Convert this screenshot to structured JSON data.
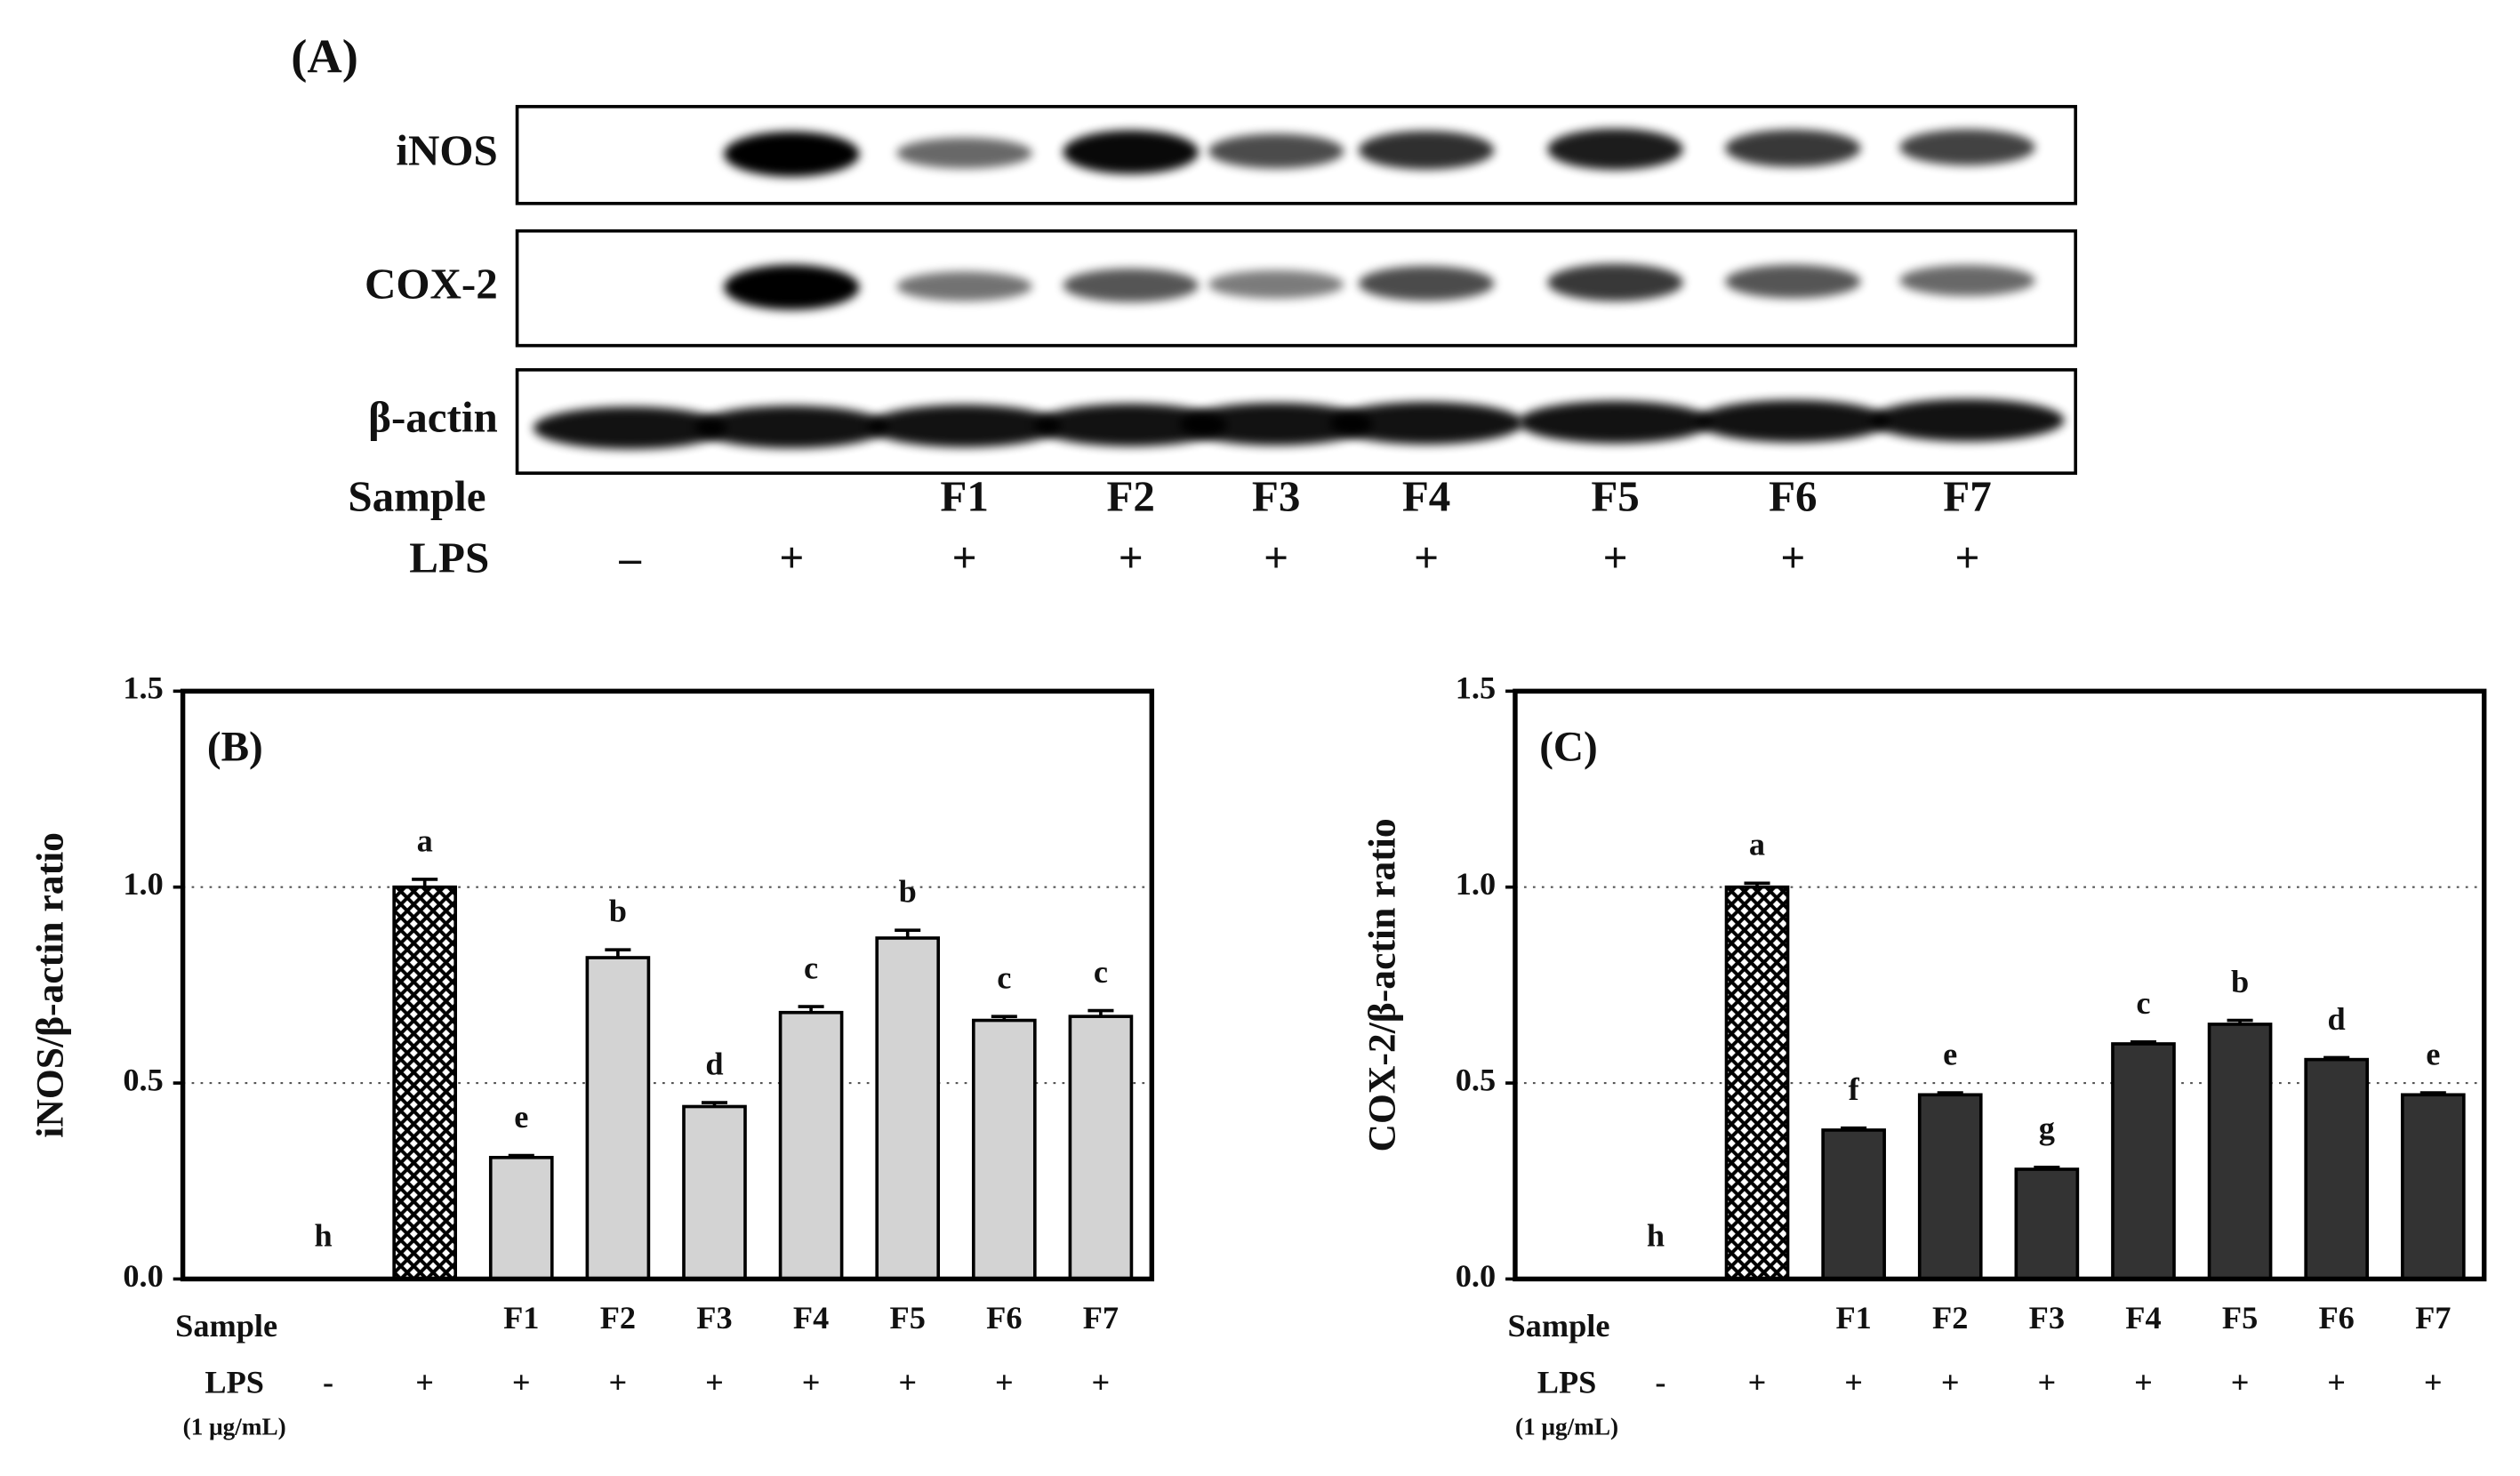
{
  "panel_a": {
    "label": "(A)",
    "rows": [
      "iNOS",
      "COX-2",
      "β-actin"
    ],
    "sample_label": "Sample",
    "samples": [
      null,
      null,
      "F1",
      "F2",
      "F3",
      "F4",
      "F5",
      "F6",
      "F7"
    ],
    "lps_label": "LPS",
    "lps": [
      "–",
      "+",
      "+",
      "+",
      "+",
      "+",
      "+",
      "+",
      "+"
    ]
  },
  "chart_data": [
    {
      "type": "bar",
      "panel": "(B)",
      "ylabel": "iNOS/β-actin ratio",
      "categories": [
        null,
        null,
        "F1",
        "F2",
        "F3",
        "F4",
        "F5",
        "F6",
        "F7"
      ],
      "values": [
        0,
        1.0,
        0.31,
        0.82,
        0.44,
        0.68,
        0.87,
        0.66,
        0.67
      ],
      "errors": [
        0,
        0.02,
        0.005,
        0.02,
        0.01,
        0.015,
        0.02,
        0.01,
        0.015
      ],
      "letters": [
        "h",
        "a",
        "e",
        "b",
        "d",
        "c",
        "b",
        "c",
        "c"
      ],
      "colors": [
        "#d3d3d3",
        "crosshatch",
        "#d3d3d3",
        "#d3d3d3",
        "#d3d3d3",
        "#d3d3d3",
        "#d3d3d3",
        "#d3d3d3",
        "#d3d3d3"
      ],
      "ylim": [
        0,
        1.5
      ],
      "yticks": [
        {
          "value": 0,
          "label": "0.0"
        },
        {
          "value": 0.5,
          "label": "0.5"
        },
        {
          "value": 1,
          "label": "1.0"
        },
        {
          "value": 1.5,
          "label": "1.5"
        }
      ],
      "grid": true,
      "sample_label": "Sample",
      "lps_label": "LPS",
      "lps_unit": "(1 μg/mL)",
      "lps": [
        "-",
        "+",
        "+",
        "+",
        "+",
        "+",
        "+",
        "+",
        "+"
      ]
    },
    {
      "type": "bar",
      "panel": "(C)",
      "ylabel": "COX-2/β-actin ratio",
      "categories": [
        null,
        null,
        "F1",
        "F2",
        "F3",
        "F4",
        "F5",
        "F6",
        "F7"
      ],
      "values": [
        0,
        1.0,
        0.38,
        0.47,
        0.28,
        0.6,
        0.65,
        0.56,
        0.47
      ],
      "errors": [
        0,
        0.01,
        0.005,
        0.005,
        0.005,
        0.005,
        0.01,
        0.005,
        0.005
      ],
      "letters": [
        "h",
        "a",
        "f",
        "e",
        "g",
        "c",
        "b",
        "d",
        "e"
      ],
      "colors": [
        "#333333",
        "crosshatch",
        "#333333",
        "#333333",
        "#333333",
        "#333333",
        "#333333",
        "#333333",
        "#333333"
      ],
      "ylim": [
        0,
        1.5
      ],
      "yticks": [
        {
          "value": 0,
          "label": "0.0"
        },
        {
          "value": 0.5,
          "label": "0.5"
        },
        {
          "value": 1,
          "label": "1.0"
        },
        {
          "value": 1.5,
          "label": "1.5"
        }
      ],
      "grid": true,
      "sample_label": "Sample",
      "lps_label": "LPS",
      "lps_unit": "(1 μg/mL)",
      "lps": [
        "-",
        "+",
        "+",
        "+",
        "+",
        "+",
        "+",
        "+",
        "+"
      ]
    }
  ]
}
